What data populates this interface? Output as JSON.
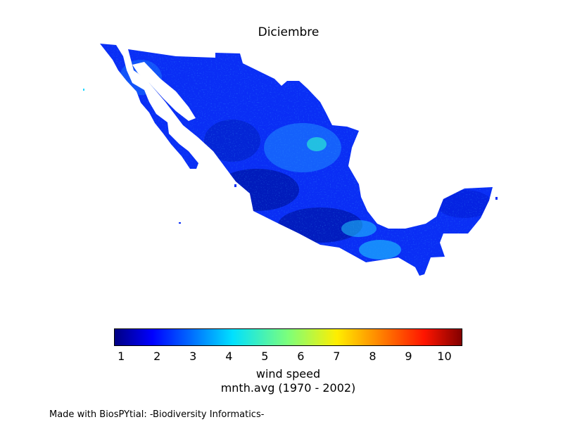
{
  "map": {
    "title": "Diciembre",
    "colorbar": {
      "colormap": "jet",
      "range": [
        0.8,
        10.5
      ],
      "ticks": [
        "1",
        "2",
        "3",
        "4",
        "5",
        "6",
        "7",
        "8",
        "9",
        "10"
      ],
      "label_line1": "wind speed",
      "label_line2": "mnth.avg (1970 - 2002)"
    },
    "colors": {
      "dominant": "#0a2ef5",
      "dark": "#0018b0",
      "highlight": "#21d7ff",
      "peak": "#2bffd0"
    }
  },
  "footer": "Made with BiosPYtial: -Biodiversity Informatics-"
}
